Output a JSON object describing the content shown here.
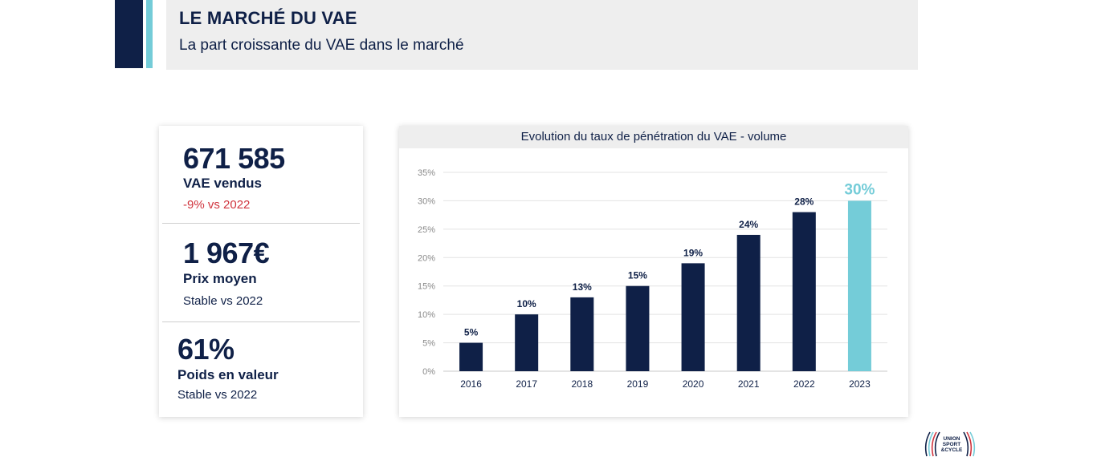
{
  "header": {
    "title": "LE MARCHÉ DU VAE",
    "subtitle": "La part croissante du VAE dans le marché"
  },
  "kpis": [
    {
      "value": "671 585",
      "label": "VAE vendus",
      "trend": "-9% vs 2022"
    },
    {
      "value": "1 967€",
      "label": "Prix moyen",
      "trend": "Stable vs 2022"
    },
    {
      "value": "61%",
      "label": "Poids en valeur",
      "trend": "Stable vs 2022"
    }
  ],
  "colors": {
    "navy": "#0f2047",
    "accent": "#74ccd8",
    "negative": "#d0343e"
  },
  "logo": {
    "text_line1": "UNION",
    "text_line2": "SPORT",
    "text_line3": "&CYCLE"
  },
  "chart_data": {
    "type": "bar",
    "title": "Evolution du taux de pénétration du VAE - volume",
    "categories": [
      "2016",
      "2017",
      "2018",
      "2019",
      "2020",
      "2021",
      "2022",
      "2023"
    ],
    "values": [
      5,
      10,
      13,
      15,
      19,
      24,
      28,
      30
    ],
    "data_labels": [
      "5%",
      "10%",
      "13%",
      "15%",
      "19%",
      "24%",
      "28%",
      "30%"
    ],
    "highlight_index": 7,
    "ylim": [
      0,
      35
    ],
    "y_ticks": [
      0,
      5,
      10,
      15,
      20,
      25,
      30,
      35
    ],
    "y_tick_labels": [
      "0%",
      "5%",
      "10%",
      "15%",
      "20%",
      "25%",
      "30%",
      "35%"
    ],
    "grid": true,
    "xlabel": "",
    "ylabel": ""
  }
}
